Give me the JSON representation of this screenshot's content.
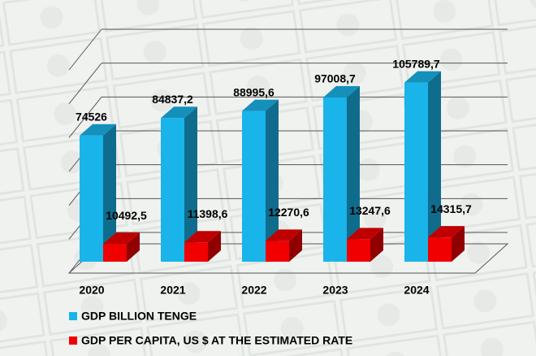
{
  "chart_data": {
    "type": "bar3d",
    "categories": [
      "2020",
      "2021",
      "2022",
      "2023",
      "2024"
    ],
    "series": [
      {
        "name": "GDP BILLION TENGE",
        "color": "#19b4ea",
        "values": [
          74526,
          84837.2,
          88995.6,
          97008.7,
          105789.7
        ],
        "value_labels": [
          "74526",
          "84837,2",
          "88995,6",
          "97008,7",
          "105789,7"
        ]
      },
      {
        "name": "GDP PER CAPITA, US $ AT THE ESTIMATED RATE",
        "color": "#f00000",
        "values": [
          10492.5,
          11398.6,
          12270.6,
          13247.6,
          14315.7
        ],
        "value_labels": [
          "10492,5",
          "11398,6",
          "12270,6",
          "13247,6",
          "14315,7"
        ]
      }
    ],
    "ylim": [
      0,
      120000
    ],
    "yticks": [
      0,
      20000,
      40000,
      60000,
      80000,
      100000,
      120000
    ],
    "grid": true
  }
}
